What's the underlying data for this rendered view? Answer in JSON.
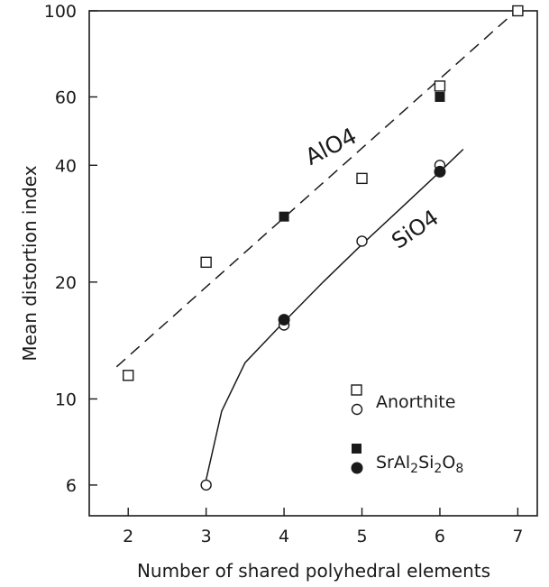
{
  "chart_data": {
    "type": "scatter",
    "title": "",
    "xlabel": "Number of shared polyhedral elements",
    "ylabel": "Mean distortion index",
    "xlim": [
      1.5,
      7.25
    ],
    "ylim": [
      5,
      100
    ],
    "yscale": "log",
    "grid": false,
    "xticks": [
      "2",
      "3",
      "4",
      "5",
      "6",
      "7"
    ],
    "yticks": [
      "6",
      "10",
      "20",
      "40",
      "60",
      "100"
    ],
    "legend_position": "bottom-right",
    "legend": {
      "anorthite": "Anorthite",
      "sral_prefix": "SrAl",
      "sral_sub1": "2",
      "sral_mid": "Si",
      "sral_sub2": "2",
      "sral_o": "O",
      "sral_sub3": "8"
    },
    "annotations": {
      "alo4": "AlO4",
      "sio4": "SiO4"
    },
    "series": [
      {
        "name": "Anorthite AlO4",
        "marker": "open-square",
        "x": [
          2,
          3,
          5,
          6,
          7
        ],
        "y": [
          11.5,
          22.5,
          37,
          64,
          100
        ]
      },
      {
        "name": "SrAl2Si2O8 AlO4",
        "marker": "filled-square",
        "x": [
          4,
          6
        ],
        "y": [
          29.5,
          60
        ]
      },
      {
        "name": "Anorthite SiO4",
        "marker": "open-circle",
        "x": [
          3,
          4,
          5,
          6
        ],
        "y": [
          6,
          15.5,
          25.5,
          40
        ]
      },
      {
        "name": "SrAl2Si2O8 SiO4",
        "marker": "filled-circle",
        "x": [
          4,
          6
        ],
        "y": [
          16,
          38.5
        ]
      }
    ],
    "fit_lines": [
      {
        "name": "AlO4 trend",
        "style": "dashed",
        "x": [
          1.85,
          7.05
        ],
        "y": [
          12.1,
          103
        ]
      },
      {
        "name": "SiO4 trend",
        "style": "solid",
        "x": [
          3,
          3.2,
          3.5,
          4,
          4.5,
          5,
          5.5,
          6,
          6.3
        ],
        "y": [
          6.2,
          9.3,
          12.4,
          15.8,
          20,
          25,
          31,
          38.5,
          44
        ]
      }
    ]
  }
}
